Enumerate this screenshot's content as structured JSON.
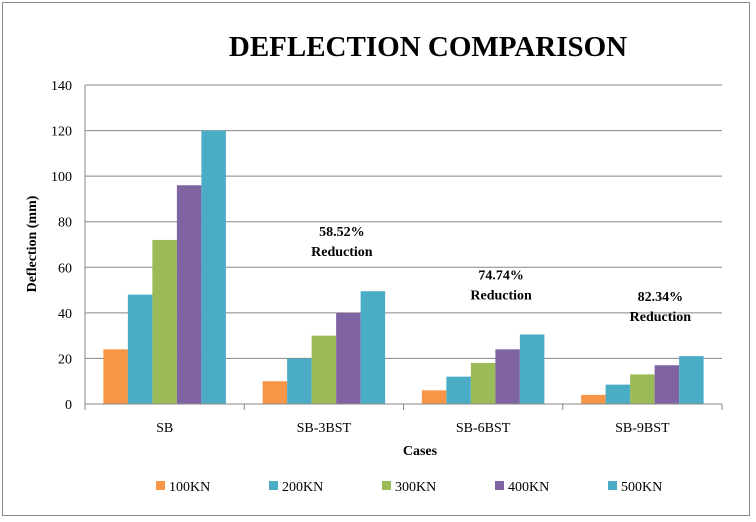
{
  "chart_data": {
    "type": "bar",
    "title": "DEFLECTION COMPARISON",
    "xlabel": "Cases",
    "ylabel": "Deflection (mm)",
    "ylim": [
      0,
      140
    ],
    "yticks": [
      0,
      20,
      40,
      60,
      80,
      100,
      120,
      140
    ],
    "grid": true,
    "legend_position": "bottom",
    "categories": [
      "SB",
      "SB-3BST",
      "SB-6BST",
      "SB-9BST"
    ],
    "series": [
      {
        "name": "100KN",
        "color": "#F79646",
        "values": [
          24,
          10,
          6,
          4
        ]
      },
      {
        "name": "200KN",
        "color": "#4BACC6",
        "values": [
          48,
          20,
          12,
          8.5
        ]
      },
      {
        "name": "300KN",
        "color": "#9BBB59",
        "values": [
          72,
          30,
          18,
          13
        ]
      },
      {
        "name": "400KN",
        "color": "#8064A2",
        "values": [
          96,
          40,
          24,
          17
        ]
      },
      {
        "name": "500KN",
        "color": "#4BACC6",
        "values": [
          120,
          49.5,
          30.5,
          21
        ]
      }
    ],
    "annotations": [
      {
        "category": "SB-3BST",
        "line1": "58.52%",
        "line2": "Reduction"
      },
      {
        "category": "SB-6BST",
        "line1": "74.74%",
        "line2": "Reduction"
      },
      {
        "category": "SB-9BST",
        "line1": "82.34%",
        "line2": "Reduction"
      }
    ]
  }
}
